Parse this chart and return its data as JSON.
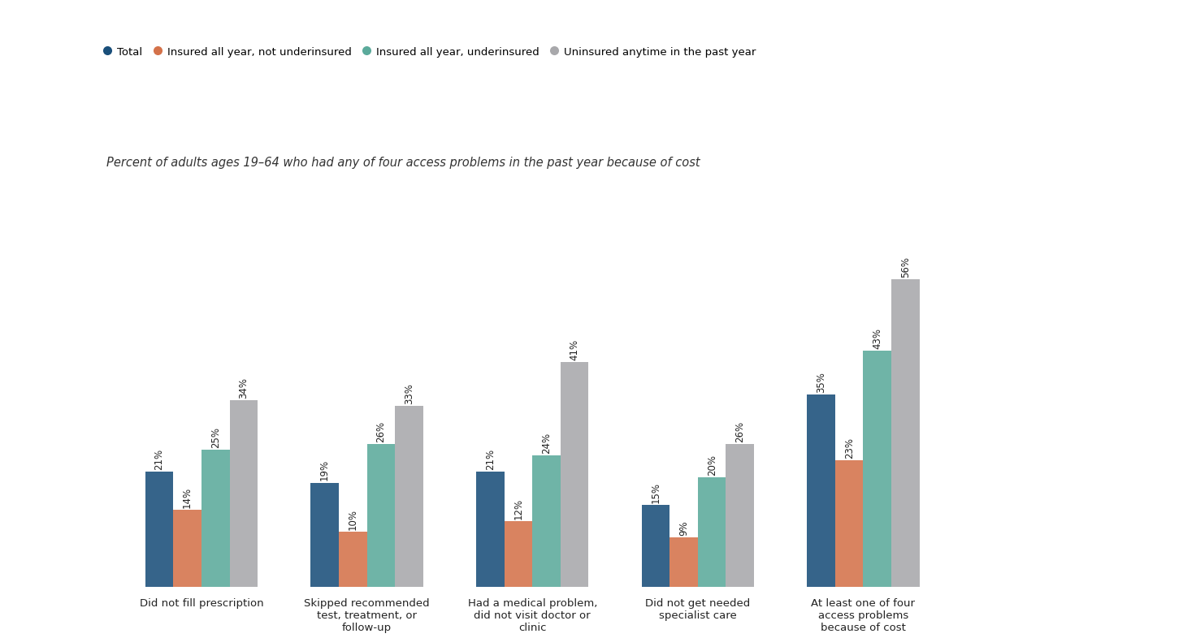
{
  "subtitle": "Percent of adults ages 19–64 who had any of four access problems in the past year because of cost",
  "categories": [
    "Did not fill prescription",
    "Skipped recommended\ntest, treatment, or\nfollow-up",
    "Had a medical problem,\ndid not visit doctor or\nclinic",
    "Did not get needed\nspecialist care",
    "At least one of four\naccess problems\nbecause of cost"
  ],
  "series": {
    "Total": [
      21,
      19,
      21,
      15,
      35
    ],
    "Insured all year, not underinsured": [
      14,
      10,
      12,
      9,
      23
    ],
    "Insured all year, underinsured": [
      25,
      26,
      24,
      20,
      43
    ],
    "Uninsured anytime in the past year": [
      34,
      33,
      41,
      26,
      56
    ]
  },
  "colors": {
    "Total": "#1a4f7a",
    "Insured all year, not underinsured": "#d4724a",
    "Insured all year, underinsured": "#5baa9b",
    "Uninsured anytime in the past year": "#a8a8ab"
  },
  "legend_order": [
    "Total",
    "Insured all year, not underinsured",
    "Insured all year, underinsured",
    "Uninsured anytime in the past year"
  ],
  "bar_width": 0.17,
  "subtitle_fontsize": 10.5,
  "legend_fontsize": 9.5,
  "bar_label_fontsize": 8.5,
  "category_fontsize": 9.5
}
